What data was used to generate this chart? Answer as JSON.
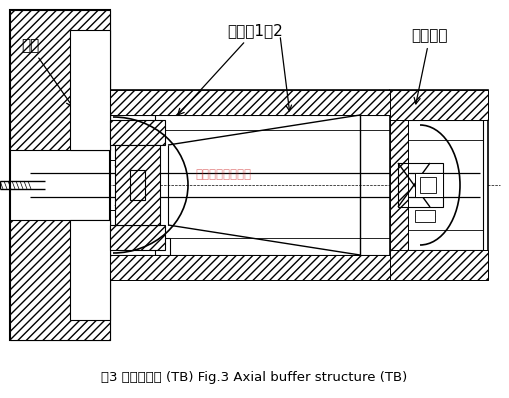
{
  "title": "图3 机芯结构图 (TB) Fig.3 Axial buffer structure (TB)",
  "title_fontsize": 9.5,
  "bg_color": "#ffffff",
  "lc": "#000000",
  "watermark_text": "江苏华云流量计厂",
  "watermark_color": "#cc2222",
  "watermark_alpha": 0.55,
  "label_zhujing": "主轴",
  "label_zhuzhoucheng": "主轴承1、2",
  "label_tuilizhoucheng": "推力轴承"
}
